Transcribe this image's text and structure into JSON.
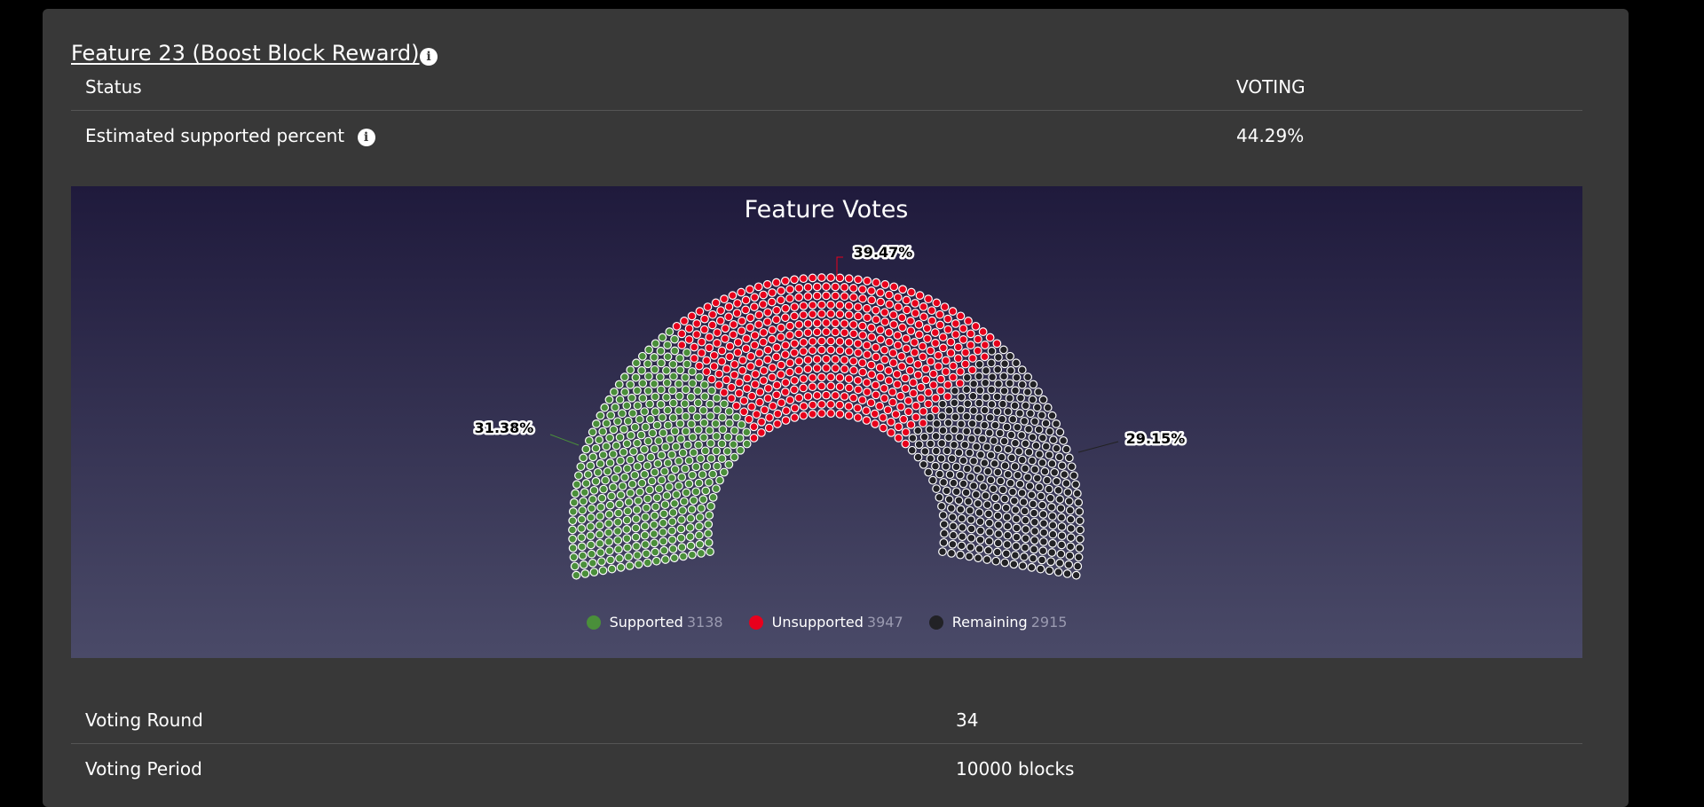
{
  "feature": {
    "title": "Feature 23 (Boost Block Reward)",
    "info_icon": "info-icon"
  },
  "rows_top": [
    {
      "label": "Status",
      "value": "VOTING"
    },
    {
      "label": "Estimated supported percent",
      "value": "44.29%",
      "has_info": true
    }
  ],
  "chart_data": {
    "type": "item-parliament",
    "title": "Feature Votes",
    "series": [
      {
        "name": "Supported",
        "value": 3138,
        "percent_label": "31.38%",
        "color": "#4a8f3a"
      },
      {
        "name": "Unsupported",
        "value": 3947,
        "percent_label": "39.47%",
        "color": "#e8001c"
      },
      {
        "name": "Remaining",
        "value": 2915,
        "percent_label": "29.15%",
        "color": "#222226"
      }
    ],
    "legend": "bottom"
  },
  "rows_bottom": [
    {
      "label": "Voting Round",
      "value": "34"
    },
    {
      "label": "Voting Period",
      "value": "10000 blocks"
    }
  ]
}
